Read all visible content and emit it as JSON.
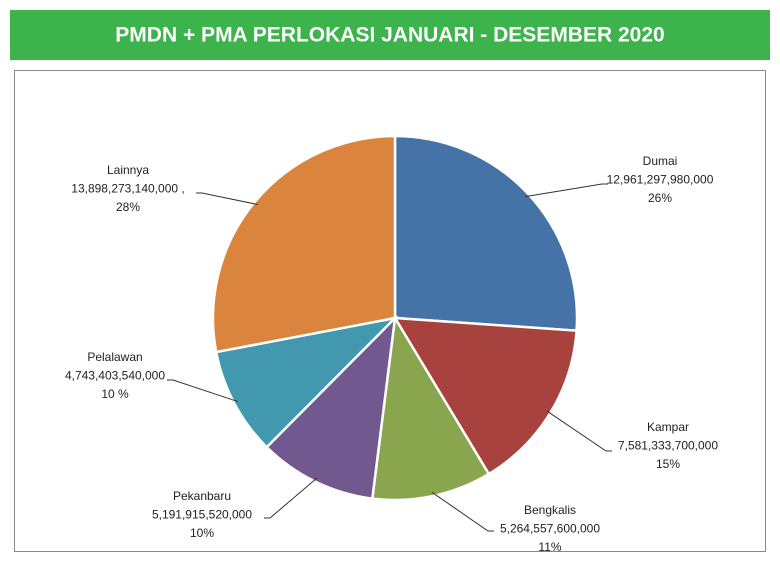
{
  "chart_data": {
    "type": "pie",
    "title": "PMDN + PMA PERLOKASI JANUARI - DESEMBER 2020",
    "categories": [
      "Dumai",
      "Kampar",
      "Bengkalis",
      "Pekanbaru",
      "Pelalawan",
      "Lainnya"
    ],
    "values": [
      12961297980000,
      7581333700000,
      5264557600000,
      5191915520000,
      4743403540000,
      13898273140000
    ],
    "value_labels": [
      "12,961,297,980,000",
      "7,581,333,700,000",
      "5,264,557,600,000",
      "5,191,915,520,000",
      "4,743,403,540,000",
      "13,898,273,140,000 ,"
    ],
    "percent_labels": [
      "26%",
      "15%",
      "11%",
      "10%",
      "10 %",
      "28%"
    ],
    "colors": [
      "#4572a7",
      "#a8423f",
      "#89a54e",
      "#71588f",
      "#4198af",
      "#db843d"
    ]
  }
}
